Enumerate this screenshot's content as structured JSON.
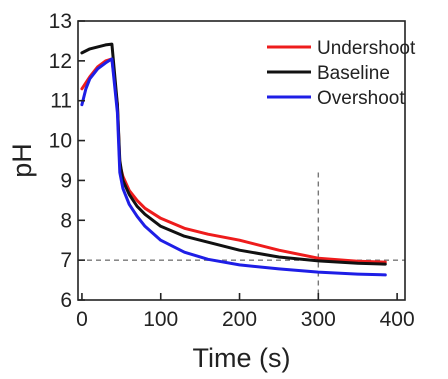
{
  "chart_data": {
    "type": "line",
    "xlabel": "Time (s)",
    "ylabel": "pH",
    "xlim": [
      -5,
      410
    ],
    "ylim": [
      6,
      13
    ],
    "xticks": [
      0,
      100,
      200,
      300,
      400
    ],
    "yticks": [
      6,
      7,
      8,
      9,
      10,
      11,
      12,
      13
    ],
    "xtick_labels": [
      "0",
      "100",
      "200",
      "300",
      "400"
    ],
    "ytick_labels": [
      "6",
      "7",
      "8",
      "9",
      "10",
      "11",
      "12",
      "13"
    ],
    "grid": false,
    "legend_position": "top-right",
    "series": [
      {
        "name": "Undershoot",
        "color": "#ee1c1c",
        "x": [
          0,
          10,
          20,
          30,
          38,
          45,
          48,
          52,
          60,
          70,
          80,
          100,
          130,
          160,
          200,
          250,
          300,
          350,
          385
        ],
        "y": [
          11.3,
          11.6,
          11.85,
          12.0,
          12.05,
          10.9,
          9.4,
          9.1,
          8.75,
          8.5,
          8.3,
          8.05,
          7.8,
          7.65,
          7.5,
          7.25,
          7.05,
          6.97,
          6.95
        ]
      },
      {
        "name": "Baseline",
        "color": "#111111",
        "x": [
          0,
          10,
          20,
          30,
          38,
          45,
          48,
          52,
          60,
          70,
          80,
          100,
          130,
          160,
          200,
          250,
          300,
          350,
          385
        ],
        "y": [
          12.2,
          12.3,
          12.35,
          12.4,
          12.42,
          10.9,
          9.5,
          9.0,
          8.65,
          8.35,
          8.15,
          7.85,
          7.6,
          7.45,
          7.25,
          7.08,
          6.98,
          6.92,
          6.9
        ]
      },
      {
        "name": "Overshoot",
        "color": "#1e1ee6",
        "x": [
          0,
          5,
          10,
          20,
          30,
          38,
          45,
          48,
          52,
          60,
          70,
          80,
          100,
          130,
          160,
          200,
          250,
          300,
          350,
          385
        ],
        "y": [
          10.9,
          11.3,
          11.55,
          11.8,
          11.95,
          12.05,
          10.7,
          9.2,
          8.8,
          8.4,
          8.1,
          7.85,
          7.5,
          7.2,
          7.02,
          6.88,
          6.78,
          6.7,
          6.65,
          6.63
        ]
      }
    ],
    "reference_lines": [
      {
        "orientation": "horizontal",
        "value": 7,
        "style": "dashed",
        "color": "#777777"
      },
      {
        "orientation": "vertical",
        "value": 300,
        "style": "dashed",
        "color": "#777777"
      }
    ]
  }
}
